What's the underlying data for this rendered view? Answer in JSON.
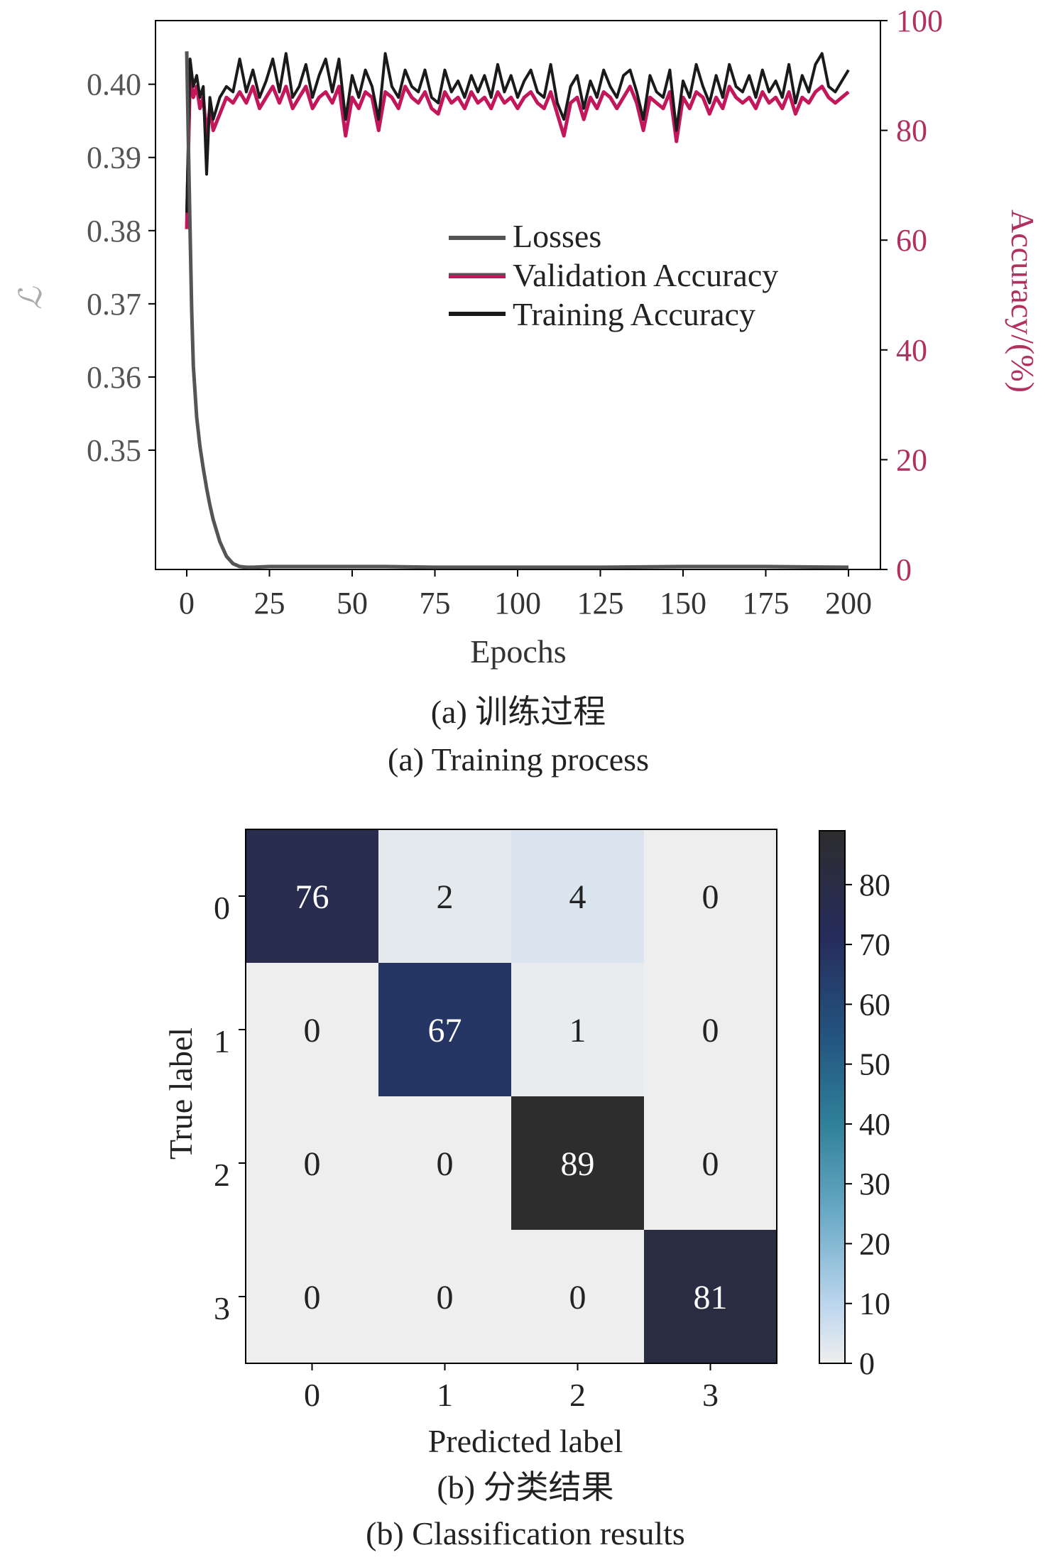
{
  "colors": {
    "accuracy_axis": "#b03060",
    "losses": "#555555",
    "validation": "#c2185b",
    "training": "#1a1a1a",
    "axis": "#000000",
    "tick_text": "#555555"
  },
  "panel_a": {
    "caption_cn": "(a) 训练过程",
    "caption_en": "(a) Training process"
  },
  "panel_b": {
    "caption_cn": "(b) 分类结果",
    "caption_en": "(b) Classification results"
  },
  "chart_data": [
    {
      "type": "line",
      "xlabel": "Epochs",
      "ylabel": "ℒ",
      "y2label": "Accuracy/(%)",
      "xlim": [
        0,
        200
      ],
      "ylim": [
        0.3337,
        0.4087
      ],
      "y2lim": [
        0,
        100
      ],
      "xticks": [
        "0",
        "25",
        "50",
        "75",
        "100",
        "125",
        "150",
        "175",
        "200"
      ],
      "yticks": [
        "0.35",
        "0.36",
        "0.37",
        "0.38",
        "0.39",
        "0.40"
      ],
      "y2ticks": [
        "0",
        "20",
        "40",
        "60",
        "80",
        "100"
      ],
      "legend_position": "center-right",
      "grid": false,
      "series": [
        {
          "name": "Losses",
          "axis": "left",
          "x": [
            0,
            0.5,
            1,
            1.5,
            2,
            3,
            4,
            5,
            6,
            7,
            8,
            10,
            12,
            14,
            16,
            18,
            20,
            25,
            30,
            40,
            50,
            60,
            75,
            100,
            125,
            150,
            175,
            200
          ],
          "y": [
            0.4045,
            0.392,
            0.38,
            0.369,
            0.3615,
            0.3545,
            0.3505,
            0.3475,
            0.3448,
            0.3425,
            0.3405,
            0.3375,
            0.3355,
            0.3345,
            0.3341,
            0.334,
            0.334,
            0.3341,
            0.3341,
            0.3341,
            0.3341,
            0.3341,
            0.334,
            0.334,
            0.334,
            0.3341,
            0.3341,
            0.334
          ]
        },
        {
          "name": "Validation Accuracy",
          "axis": "right",
          "x": [
            0,
            1,
            2,
            3,
            4,
            5,
            6,
            7,
            8,
            10,
            12,
            14,
            16,
            18,
            20,
            22,
            24,
            26,
            28,
            30,
            32,
            34,
            36,
            38,
            40,
            42,
            44,
            46,
            48,
            50,
            52,
            54,
            56,
            58,
            60,
            62,
            64,
            66,
            68,
            70,
            72,
            74,
            76,
            78,
            80,
            82,
            84,
            86,
            88,
            90,
            92,
            94,
            96,
            98,
            100,
            102,
            104,
            106,
            108,
            110,
            112,
            114,
            116,
            118,
            120,
            122,
            124,
            126,
            128,
            130,
            132,
            134,
            136,
            138,
            140,
            142,
            144,
            146,
            148,
            150,
            152,
            154,
            156,
            158,
            160,
            162,
            164,
            166,
            168,
            170,
            172,
            174,
            176,
            178,
            180,
            182,
            184,
            186,
            188,
            190,
            192,
            194,
            196,
            198,
            200
          ],
          "y": [
            62,
            90,
            86,
            88,
            84,
            86,
            79,
            84,
            80,
            83,
            86,
            85,
            87,
            85,
            88,
            84,
            86,
            88,
            85,
            88,
            84,
            86,
            88,
            84,
            86,
            87,
            85,
            88,
            79,
            86,
            84,
            87,
            86,
            80,
            87,
            86,
            84,
            88,
            86,
            85,
            87,
            84,
            83,
            87,
            85,
            86,
            84,
            87,
            85,
            86,
            84,
            87,
            85,
            86,
            84,
            86,
            87,
            85,
            84,
            87,
            83,
            79,
            85,
            86,
            82,
            86,
            84,
            87,
            86,
            84,
            86,
            88,
            85,
            80,
            86,
            85,
            84,
            87,
            78,
            86,
            84,
            87,
            86,
            83,
            86,
            84,
            88,
            86,
            85,
            86,
            84,
            87,
            85,
            86,
            84,
            87,
            83,
            86,
            85,
            87,
            88,
            86,
            85,
            86,
            87
          ]
        },
        {
          "name": "Training Accuracy",
          "axis": "right",
          "x": [
            0,
            1,
            2,
            3,
            4,
            5,
            6,
            7,
            8,
            10,
            12,
            14,
            16,
            18,
            20,
            22,
            24,
            26,
            28,
            30,
            32,
            34,
            36,
            38,
            40,
            42,
            44,
            46,
            48,
            50,
            52,
            54,
            56,
            58,
            60,
            62,
            64,
            66,
            68,
            70,
            72,
            74,
            76,
            78,
            80,
            82,
            84,
            86,
            88,
            90,
            92,
            94,
            96,
            98,
            100,
            102,
            104,
            106,
            108,
            110,
            112,
            114,
            116,
            118,
            120,
            122,
            124,
            126,
            128,
            130,
            132,
            134,
            136,
            138,
            140,
            142,
            144,
            146,
            148,
            150,
            152,
            154,
            156,
            158,
            160,
            162,
            164,
            166,
            168,
            170,
            172,
            174,
            176,
            178,
            180,
            182,
            184,
            186,
            188,
            190,
            192,
            194,
            196,
            198,
            200
          ],
          "y": [
            65,
            93,
            88,
            90,
            86,
            88,
            72,
            86,
            82,
            86,
            88,
            87,
            93,
            87,
            91,
            86,
            89,
            93,
            87,
            94,
            86,
            88,
            92,
            86,
            90,
            93,
            87,
            93,
            82,
            90,
            86,
            91,
            88,
            82,
            94,
            88,
            86,
            91,
            88,
            87,
            91,
            86,
            85,
            91,
            87,
            89,
            86,
            90,
            87,
            90,
            86,
            92,
            87,
            90,
            86,
            89,
            91,
            87,
            86,
            92,
            85,
            82,
            88,
            90,
            84,
            89,
            86,
            91,
            88,
            86,
            90,
            91,
            87,
            82,
            90,
            87,
            86,
            91,
            80,
            89,
            86,
            92,
            88,
            85,
            90,
            86,
            92,
            88,
            87,
            90,
            86,
            91,
            87,
            89,
            86,
            92,
            85,
            90,
            87,
            92,
            94,
            88,
            87,
            89,
            91
          ]
        }
      ]
    },
    {
      "type": "heatmap",
      "xlabel": "Predicted label",
      "ylabel": "True label",
      "x_categories": [
        "0",
        "1",
        "2",
        "3"
      ],
      "y_categories": [
        "0",
        "1",
        "2",
        "3"
      ],
      "values": [
        [
          76,
          2,
          4,
          0
        ],
        [
          0,
          67,
          1,
          0
        ],
        [
          0,
          0,
          89,
          0
        ],
        [
          0,
          0,
          0,
          81
        ]
      ],
      "colorbar_range": [
        0,
        89
      ],
      "colorbar_ticks": [
        "0",
        "10",
        "20",
        "30",
        "40",
        "50",
        "60",
        "70",
        "80"
      ]
    }
  ]
}
